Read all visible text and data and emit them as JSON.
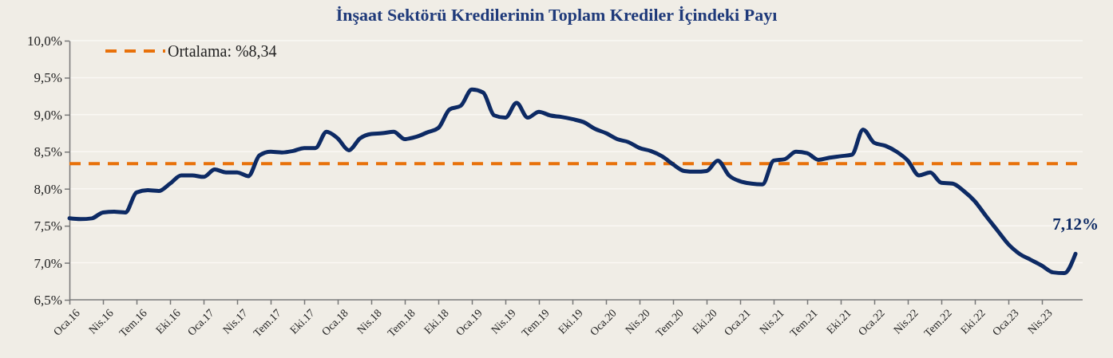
{
  "chart_data": {
    "type": "line",
    "title": "İnşaat Sektörü Kredilerinin Toplam Krediler İçindeki Payı",
    "categories": [
      "Oca.16",
      null,
      null,
      "Nis.16",
      null,
      null,
      "Tem.16",
      null,
      null,
      "Eki.16",
      null,
      null,
      "Oca.17",
      null,
      null,
      "Nis.17",
      null,
      null,
      "Tem.17",
      null,
      null,
      "Eki.17",
      null,
      null,
      "Oca.18",
      null,
      null,
      "Nis.18",
      null,
      null,
      "Tem.18",
      null,
      null,
      "Eki.18",
      null,
      null,
      "Oca.19",
      null,
      null,
      "Nis.19",
      null,
      null,
      "Tem.19",
      null,
      null,
      "Eki.19",
      null,
      null,
      "Oca.20",
      null,
      null,
      "Nis.20",
      null,
      null,
      "Tem.20",
      null,
      null,
      "Eki.20",
      null,
      null,
      "Oca.21",
      null,
      null,
      "Nis.21",
      null,
      null,
      "Tem.21",
      null,
      null,
      "Eki.21",
      null,
      null,
      "Oca.22",
      null,
      null,
      "Nis.22",
      null,
      null,
      "Tem.22",
      null,
      null,
      "Eki.22",
      null,
      null,
      "Oca.23",
      null,
      null,
      "Nis.23",
      null,
      null,
      null
    ],
    "series": [
      {
        "color": "#0d2a64",
        "values": [
          7.6,
          7.59,
          7.6,
          7.68,
          7.69,
          7.68,
          7.95,
          7.98,
          7.97,
          8.07,
          8.18,
          8.18,
          8.16,
          8.26,
          8.22,
          8.22,
          8.17,
          8.45,
          8.5,
          8.49,
          8.51,
          8.55,
          8.55,
          8.77,
          8.68,
          8.52,
          8.68,
          8.74,
          8.75,
          8.77,
          8.67,
          8.7,
          8.76,
          8.82,
          9.07,
          9.12,
          9.34,
          9.3,
          8.99,
          8.96,
          9.16,
          8.96,
          9.04,
          8.99,
          8.97,
          8.94,
          8.9,
          8.81,
          8.75,
          8.67,
          8.63,
          8.55,
          8.51,
          8.44,
          8.33,
          8.24,
          8.23,
          8.24,
          8.38,
          8.18,
          8.1,
          8.07,
          8.06,
          8.38,
          8.4,
          8.5,
          8.48,
          8.39,
          8.42,
          8.44,
          8.46,
          8.8,
          8.62,
          8.58,
          8.5,
          8.38,
          8.18,
          8.22,
          8.08,
          8.07,
          7.97,
          7.83,
          7.63,
          7.44,
          7.25,
          7.12,
          7.04,
          6.96,
          6.87,
          6.86,
          7.12
        ],
        "value_labels": [
          null,
          null,
          null,
          null,
          null,
          null,
          null,
          null,
          null,
          null,
          null,
          null,
          null,
          null,
          null,
          null,
          null,
          null,
          null,
          null,
          null,
          null,
          null,
          null,
          null,
          null,
          null,
          null,
          null,
          null,
          null,
          null,
          null,
          null,
          null,
          null,
          null,
          null,
          null,
          null,
          null,
          null,
          null,
          null,
          null,
          null,
          null,
          null,
          null,
          null,
          null,
          null,
          null,
          null,
          null,
          null,
          null,
          null,
          null,
          null,
          null,
          null,
          null,
          null,
          null,
          null,
          null,
          null,
          null,
          null,
          null,
          null,
          null,
          null,
          null,
          null,
          null,
          null,
          null,
          null,
          null,
          null,
          null,
          null,
          null,
          null,
          null,
          null,
          null,
          null,
          "7,12%"
        ]
      }
    ],
    "ylim": [
      6.5,
      10
    ],
    "yticks": [
      {
        "value": 6.5,
        "label": "6,5%"
      },
      {
        "value": 7,
        "label": "7,0%"
      },
      {
        "value": 7.5,
        "label": "7,5%"
      },
      {
        "value": 8,
        "label": "8,0%"
      },
      {
        "value": 8.5,
        "label": "8,5%"
      },
      {
        "value": 9,
        "label": "9,0%"
      },
      {
        "value": 9.5,
        "label": "9,5%"
      },
      {
        "value": 10,
        "label": "10,0%"
      }
    ],
    "grid": "y",
    "marker": "none",
    "line_style": "solid",
    "legend": "top left",
    "ref_lines": [
      {
        "axis": "y",
        "value": 8.34,
        "label": "Ortalama: %8,34",
        "color": "#e8710a",
        "line_style": "dashed"
      }
    ]
  }
}
